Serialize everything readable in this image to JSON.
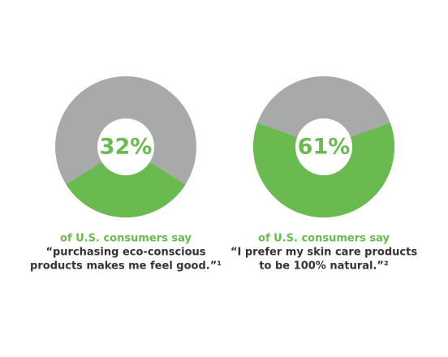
{
  "chart_data": [
    {
      "type": "donut",
      "values": [
        32
      ],
      "value_labels": [
        "32%"
      ],
      "color": "#6abb4f",
      "track_color": "#a8aaa9",
      "caption": [
        "of U.S. consumers say",
        "“purchasing eco-conscious",
        "products makes me feel good.”¹"
      ]
    },
    {
      "type": "donut",
      "values": [
        61
      ],
      "value_labels": [
        "61%"
      ],
      "color": "#6abb4f",
      "track_color": "#a8aaa9",
      "caption": [
        "of U.S. consumers say",
        "“I prefer my skin care products",
        "to be 100% natural.”²"
      ]
    }
  ]
}
